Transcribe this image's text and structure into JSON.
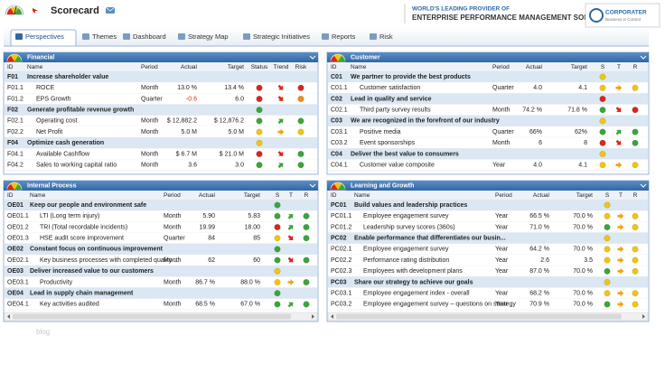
{
  "header": {
    "title": "Scorecard",
    "tagline": "WORLD'S LEADING PROVIDER OF",
    "headline": "ENTERPRISE PERFORMANCE MANAGEMENT SOLUTIONS",
    "logo": "CORPORATER",
    "logo_sub": "Business in Control"
  },
  "tabs": [
    "Perspectives",
    "Themes",
    "Dashboard",
    "Strategy Map",
    "Strategic Initiatives",
    "Reports",
    "Risk"
  ],
  "panels": [
    {
      "title": "Financial",
      "columns": [
        "ID",
        "Name",
        "Period",
        "Actual",
        "Target",
        "Status",
        "Trend",
        "Risk"
      ],
      "rows": [
        {
          "id": "F01",
          "name": "Increase shareholder value"
        },
        {
          "id": "F01.1",
          "name": "ROCE",
          "period": "Month",
          "actual": "13.0 %",
          "target": "13.4 %"
        },
        {
          "id": "F01.2",
          "name": "EPS Growth",
          "period": "Quarter",
          "actual": "-0.6",
          "target": "6.0"
        },
        {
          "id": "F02",
          "name": "Generate profitable revenue growth"
        },
        {
          "id": "F02.1",
          "name": "Operating cost",
          "period": "Month",
          "actual": "$ 12,882.2",
          "target": "$ 12,876.2"
        },
        {
          "id": "F02.2",
          "name": "Net Profit",
          "period": "Month",
          "actual": "5.0 M",
          "target": "5.0 M"
        },
        {
          "id": "F04",
          "name": "Optimize cash generation"
        },
        {
          "id": "F04.1",
          "name": "Available Cashflow",
          "period": "Month",
          "actual": "$ 6.7 M",
          "target": "$ 21.0 M"
        },
        {
          "id": "F04.2",
          "name": "Sales to working capital ratio",
          "period": "Month",
          "actual": "3.6",
          "target": "3.0"
        }
      ]
    },
    {
      "title": "Customer",
      "columns": [
        "ID",
        "Name",
        "Period",
        "Actual",
        "Target",
        "S",
        "T",
        "R"
      ],
      "rows": [
        {
          "id": "C01",
          "name": "We partner to provide the best products"
        },
        {
          "id": "C01.1",
          "name": "Customer satisfaction",
          "period": "Quarter",
          "actual": "4.0",
          "target": "4.1"
        },
        {
          "id": "C02",
          "name": "Lead in quality and service"
        },
        {
          "id": "C02.1",
          "name": "Third party survey results",
          "period": "Month",
          "actual": "74.2 %",
          "target": "71.8 %"
        },
        {
          "id": "C03",
          "name": "We are recognized in the forefront of our industry"
        },
        {
          "id": "C03.1",
          "name": "Positive media",
          "period": "Quarter",
          "actual": "66%",
          "target": "62%"
        },
        {
          "id": "C03.2",
          "name": "Event sponsorships",
          "period": "Month",
          "actual": "6",
          "target": "8"
        },
        {
          "id": "C04",
          "name": "Deliver the best value to consumers"
        },
        {
          "id": "C04.1",
          "name": "Customer value composite",
          "period": "Year",
          "actual": "4.0",
          "target": "4.1"
        }
      ]
    },
    {
      "title": "Internal Process",
      "columns": [
        "ID",
        "Name",
        "Period",
        "Actual",
        "Target",
        "S",
        "T",
        "R"
      ],
      "rows": [
        {
          "id": "OE01",
          "name": "Keep our people and environment safe"
        },
        {
          "id": "OE01.1",
          "name": "LTI (Long term injury)",
          "period": "Month",
          "actual": "5.90",
          "target": "5.83"
        },
        {
          "id": "OE01.2",
          "name": "TRI (Total recordable incidents)",
          "period": "Month",
          "actual": "19.99",
          "target": "18.00"
        },
        {
          "id": "OE01.3",
          "name": "HSE audit score improvement",
          "period": "Quarter",
          "actual": "84",
          "target": "85"
        },
        {
          "id": "OE02",
          "name": "Constant focus on continuous improvement"
        },
        {
          "id": "OE02.1",
          "name": "Key business processes with completed quality ...",
          "period": "Month",
          "actual": "62",
          "target": "60"
        },
        {
          "id": "OE03",
          "name": "Deliver increased value to our customers"
        },
        {
          "id": "OE03.1",
          "name": "Productivity",
          "period": "Month",
          "actual": "86.7 %",
          "target": "88.0 %"
        },
        {
          "id": "OE04",
          "name": "Lead in supply chain management"
        },
        {
          "id": "OE04.1",
          "name": "Key activities audited",
          "period": "Month",
          "actual": "68.5 %",
          "target": "67.0 %"
        }
      ]
    },
    {
      "title": "Learning and Growth",
      "columns": [
        "ID",
        "Name",
        "Period",
        "Actual",
        "Target",
        "S",
        "T",
        "R"
      ],
      "rows": [
        {
          "id": "PC01",
          "name": "Build values and leadership practices"
        },
        {
          "id": "PC01.1",
          "name": "Employee engagement survey",
          "period": "Year",
          "actual": "66.5 %",
          "target": "70.0 %"
        },
        {
          "id": "PC01.2",
          "name": "Leadership survey scores (360s)",
          "period": "Year",
          "actual": "71.0 %",
          "target": "70.0 %"
        },
        {
          "id": "PC02",
          "name": "Enable performance that differentiates our busin..."
        },
        {
          "id": "PC02.1",
          "name": "Employee engagement survey",
          "period": "Year",
          "actual": "64.2 %",
          "target": "70.0 %"
        },
        {
          "id": "PC02.2",
          "name": "Performance rating distribution",
          "period": "Year",
          "actual": "2.6",
          "target": "3.5"
        },
        {
          "id": "PC02.3",
          "name": "Employees with development plans",
          "period": "Year",
          "actual": "87.0 %",
          "target": "70.0 %"
        },
        {
          "id": "PC03",
          "name": "Share our strategy to achieve our goals"
        },
        {
          "id": "PC03.1",
          "name": "Employee engagement index - overall",
          "period": "Year",
          "actual": "68.2 %",
          "target": "70.0 %"
        },
        {
          "id": "PC03.2",
          "name": "Employee engagement survey – questions on strategy",
          "period": "Year",
          "actual": "70.9 %",
          "target": "70.0 %"
        }
      ]
    }
  ],
  "footer": "blog"
}
